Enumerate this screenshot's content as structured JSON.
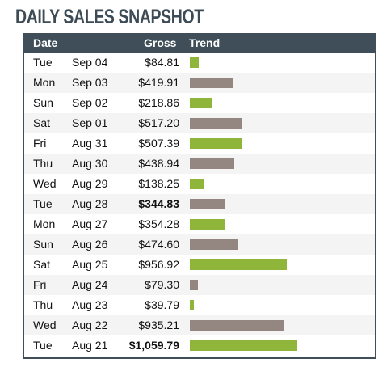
{
  "title": "DAILY SALES SNAPSHOT",
  "headers": {
    "date": "Date",
    "gross": "Gross",
    "trend": "Trend"
  },
  "colors": {
    "header_bg": "#3f4e58",
    "green": "#8fb63a",
    "taupe": "#948680"
  },
  "chart_data": {
    "type": "bar",
    "orientation": "horizontal",
    "title": "DAILY SALES SNAPSHOT",
    "xlim": [
      0,
      1059.79
    ],
    "categories": [
      "Tue Sep 04",
      "Mon Sep 03",
      "Sun Sep 02",
      "Sat Sep 01",
      "Fri Aug 31",
      "Thu Aug 30",
      "Wed Aug 29",
      "Tue Aug 28",
      "Mon Aug 27",
      "Sun Aug 26",
      "Sat Aug 25",
      "Fri Aug 24",
      "Thu Aug 23",
      "Wed Aug 22",
      "Tue Aug 21"
    ],
    "rows": [
      {
        "day": "Tue",
        "date": "Sep 04",
        "gross": "$84.81",
        "value": 84.81,
        "color": "green",
        "bold": false
      },
      {
        "day": "Mon",
        "date": "Sep 03",
        "gross": "$419.91",
        "value": 419.91,
        "color": "taupe",
        "bold": false
      },
      {
        "day": "Sun",
        "date": "Sep 02",
        "gross": "$218.86",
        "value": 218.86,
        "color": "green",
        "bold": false
      },
      {
        "day": "Sat",
        "date": "Sep 01",
        "gross": "$517.20",
        "value": 517.2,
        "color": "taupe",
        "bold": false
      },
      {
        "day": "Fri",
        "date": "Aug 31",
        "gross": "$507.39",
        "value": 507.39,
        "color": "green",
        "bold": false
      },
      {
        "day": "Thu",
        "date": "Aug 30",
        "gross": "$438.94",
        "value": 438.94,
        "color": "taupe",
        "bold": false
      },
      {
        "day": "Wed",
        "date": "Aug 29",
        "gross": "$138.25",
        "value": 138.25,
        "color": "green",
        "bold": false
      },
      {
        "day": "Tue",
        "date": "Aug 28",
        "gross": "$344.83",
        "value": 344.83,
        "color": "taupe",
        "bold": true
      },
      {
        "day": "Mon",
        "date": "Aug 27",
        "gross": "$354.28",
        "value": 354.28,
        "color": "green",
        "bold": false
      },
      {
        "day": "Sun",
        "date": "Aug 26",
        "gross": "$474.60",
        "value": 474.6,
        "color": "taupe",
        "bold": false
      },
      {
        "day": "Sat",
        "date": "Aug 25",
        "gross": "$956.92",
        "value": 956.92,
        "color": "green",
        "bold": false
      },
      {
        "day": "Fri",
        "date": "Aug 24",
        "gross": "$79.30",
        "value": 79.3,
        "color": "taupe",
        "bold": false
      },
      {
        "day": "Thu",
        "date": "Aug 23",
        "gross": "$39.79",
        "value": 39.79,
        "color": "green",
        "bold": false
      },
      {
        "day": "Wed",
        "date": "Aug 22",
        "gross": "$935.21",
        "value": 935.21,
        "color": "taupe",
        "bold": false
      },
      {
        "day": "Tue",
        "date": "Aug 21",
        "gross": "$1,059.79",
        "value": 1059.79,
        "color": "green",
        "bold": true
      }
    ]
  }
}
